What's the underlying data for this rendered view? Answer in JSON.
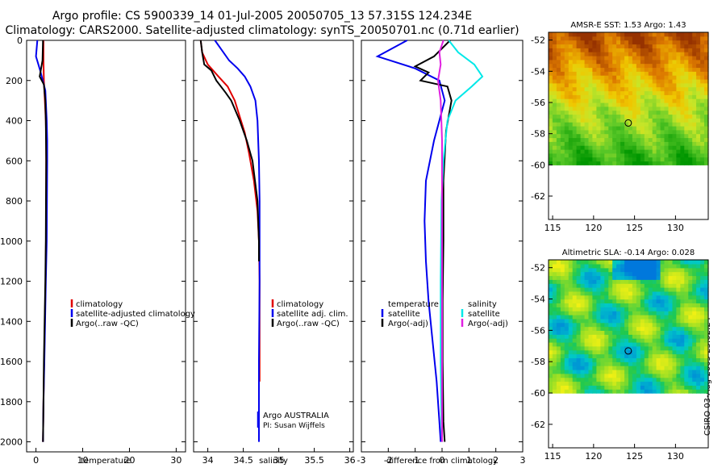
{
  "header": {
    "title_line1": "Argo profile: CS 5900339_14 01-Jul-2005 20050705_13 57.315S 124.234E",
    "title_line2": "Climatology: CARS2000. Satellite-adjusted climatology: synTS_20050701.nc (0.71d earlier)"
  },
  "stamp": "CSIRO 03-Aug-2005 23:02:24",
  "colors": {
    "climatology": "#e00000",
    "satellite": "#0000ee",
    "argo": "#000000",
    "cyan": "#00e8e8",
    "magenta": "#e020e0"
  },
  "chart_data": [
    {
      "id": "temperature",
      "type": "line",
      "xlabel": "temperature",
      "ylabel": "",
      "xlim": [
        -2,
        32
      ],
      "ylim": [
        2050,
        0
      ],
      "xticks": [
        0,
        10,
        20,
        30
      ],
      "yticks": [
        0,
        200,
        400,
        600,
        800,
        1000,
        1200,
        1400,
        1600,
        1800,
        2000
      ],
      "series": [
        {
          "name": "climatology",
          "color": "#e00000",
          "x": [
            1.6,
            1.6,
            1.7,
            1.9,
            2.1,
            2.2,
            2.2,
            2.2,
            2.15,
            2.05,
            1.9,
            1.75,
            1.6,
            1.5
          ],
          "y": [
            0,
            100,
            200,
            300,
            400,
            500,
            600,
            800,
            1000,
            1200,
            1400,
            1600,
            1800,
            2000
          ]
        },
        {
          "name": "satellite-adjusted climatology",
          "color": "#0000ee",
          "x": [
            0.3,
            0.0,
            0.9,
            2.0,
            2.3,
            2.4,
            2.4,
            2.35,
            2.3,
            2.1,
            1.95,
            1.8,
            1.6,
            1.5
          ],
          "y": [
            0,
            80,
            150,
            250,
            400,
            500,
            600,
            800,
            1000,
            1200,
            1400,
            1600,
            1800,
            2000
          ]
        },
        {
          "name": "Argo(..raw -QC)",
          "color": "#000000",
          "x": [
            1.5,
            1.4,
            0.8,
            1.7,
            2.0,
            2.1,
            2.2,
            2.15,
            2.1,
            2.0,
            1.85,
            1.7,
            1.6,
            1.5
          ],
          "y": [
            0,
            100,
            180,
            220,
            300,
            400,
            600,
            800,
            1000,
            1200,
            1400,
            1600,
            1800,
            2000
          ]
        }
      ],
      "legend": [
        "climatology",
        "satellite-adjusted climatology",
        "Argo(..raw -QC)"
      ]
    },
    {
      "id": "salinity",
      "type": "line",
      "xlabel": "salinity",
      "ylabel": "",
      "xlim": [
        33.8,
        36.05
      ],
      "ylim": [
        2050,
        0
      ],
      "xticks": [
        34,
        34.5,
        35,
        35.5,
        36
      ],
      "series": [
        {
          "name": "climatology",
          "color": "#e00000",
          "x": [
            33.9,
            33.92,
            34.0,
            34.15,
            34.28,
            34.38,
            34.45,
            34.52,
            34.58,
            34.65,
            34.7,
            34.72,
            34.73,
            34.73,
            34.73,
            34.73
          ],
          "y": [
            0,
            60,
            120,
            180,
            230,
            300,
            380,
            460,
            560,
            700,
            850,
            1000,
            1200,
            1400,
            1600,
            1700
          ]
        },
        {
          "name": "satellite adj. clim.",
          "color": "#0000ee",
          "x": [
            34.1,
            34.2,
            34.3,
            34.42,
            34.52,
            34.6,
            34.67,
            34.7,
            34.72,
            34.73,
            34.73,
            34.72,
            34.72
          ],
          "y": [
            0,
            50,
            100,
            140,
            180,
            230,
            300,
            400,
            600,
            800,
            1200,
            1600,
            2000
          ]
        },
        {
          "name": "Argo(..raw -QC)",
          "color": "#000000",
          "x": [
            33.9,
            33.92,
            33.95,
            34.05,
            34.12,
            34.25,
            34.33,
            34.45,
            34.55,
            34.63,
            34.7,
            34.72,
            34.72
          ],
          "y": [
            0,
            60,
            120,
            150,
            200,
            260,
            300,
            400,
            500,
            600,
            800,
            1000,
            1100
          ]
        }
      ],
      "legend": [
        "climatology",
        "satellite adj. clim.",
        "Argo(..raw -QC)"
      ],
      "annotations": [
        "Argo AUSTRALIA",
        "PI: Susan Wijffels"
      ]
    },
    {
      "id": "difference",
      "type": "line",
      "xlabel": "difference from climatology",
      "ylabel": "",
      "xlim": [
        -3,
        3
      ],
      "ylim": [
        2050,
        0
      ],
      "xticks": [
        -3,
        -2,
        -1,
        0,
        1,
        2,
        3
      ],
      "series": [
        {
          "name": "temperature satellite",
          "color": "#0000ee",
          "x": [
            -1.3,
            -2.4,
            -1.0,
            -0.1,
            0.1,
            -0.3,
            -0.6,
            -0.65,
            -0.6,
            -0.5,
            -0.35,
            -0.2,
            -0.1,
            -0.05
          ],
          "y": [
            0,
            80,
            140,
            200,
            300,
            500,
            700,
            900,
            1100,
            1300,
            1500,
            1700,
            1900,
            2000
          ]
        },
        {
          "name": "temperature Argo(-adj)",
          "color": "#000000",
          "x": [
            0.3,
            -0.3,
            -1.0,
            -0.5,
            -0.8,
            0.2,
            0.35,
            0.15,
            0.05,
            0.05,
            0.02,
            0.02,
            0.05,
            0.1
          ],
          "y": [
            0,
            80,
            130,
            160,
            200,
            230,
            300,
            450,
            700,
            1000,
            1300,
            1600,
            1900,
            2000
          ]
        },
        {
          "name": "salinity satellite",
          "color": "#00e8e8",
          "x": [
            0.25,
            0.6,
            1.2,
            1.5,
            1.1,
            0.5,
            0.2,
            0.05,
            -0.02,
            -0.05,
            -0.05,
            -0.02,
            0.0
          ],
          "y": [
            0,
            60,
            120,
            180,
            230,
            300,
            400,
            600,
            800,
            1200,
            1600,
            1900,
            2000
          ]
        },
        {
          "name": "salinity Argo(-adj)",
          "color": "#e020e0",
          "x": [
            0.05,
            -0.1,
            -0.05,
            -0.15,
            -0.05,
            0.0,
            0.0,
            0.0,
            0.0,
            0.0
          ],
          "y": [
            0,
            60,
            120,
            200,
            300,
            500,
            800,
            1200,
            1600,
            2000
          ]
        }
      ],
      "legend_temperature": {
        "header": "temperature",
        "items": [
          "satellite",
          "Argo(-adj)"
        ]
      },
      "legend_salinity": {
        "header": "salinity",
        "items": [
          "satellite",
          "Argo(-adj)"
        ]
      }
    },
    {
      "id": "sst_map",
      "type": "heatmap",
      "title": "AMSR-E SST: 1.53 Argo: 1.43",
      "xlim": [
        114.5,
        134
      ],
      "ylim": [
        -63.5,
        -51.5
      ],
      "xticks": [
        115,
        120,
        125,
        130
      ],
      "yticks": [
        -52,
        -54,
        -56,
        -58,
        -60,
        -62
      ],
      "data_lat_range": [
        -60,
        -51.5
      ],
      "marker": {
        "lon": 124.234,
        "lat": -57.315
      }
    },
    {
      "id": "sla_map",
      "type": "heatmap",
      "title": "Altimetric SLA: -0.14 Argo: 0.028",
      "xlim": [
        114.5,
        134
      ],
      "ylim": [
        -63.5,
        -51.5
      ],
      "xticks": [
        115,
        120,
        125,
        130
      ],
      "yticks": [
        -52,
        -54,
        -56,
        -58,
        -60,
        -62
      ],
      "data_lat_range": [
        -60,
        -51.5
      ],
      "marker": {
        "lon": 124.234,
        "lat": -57.315
      }
    }
  ]
}
